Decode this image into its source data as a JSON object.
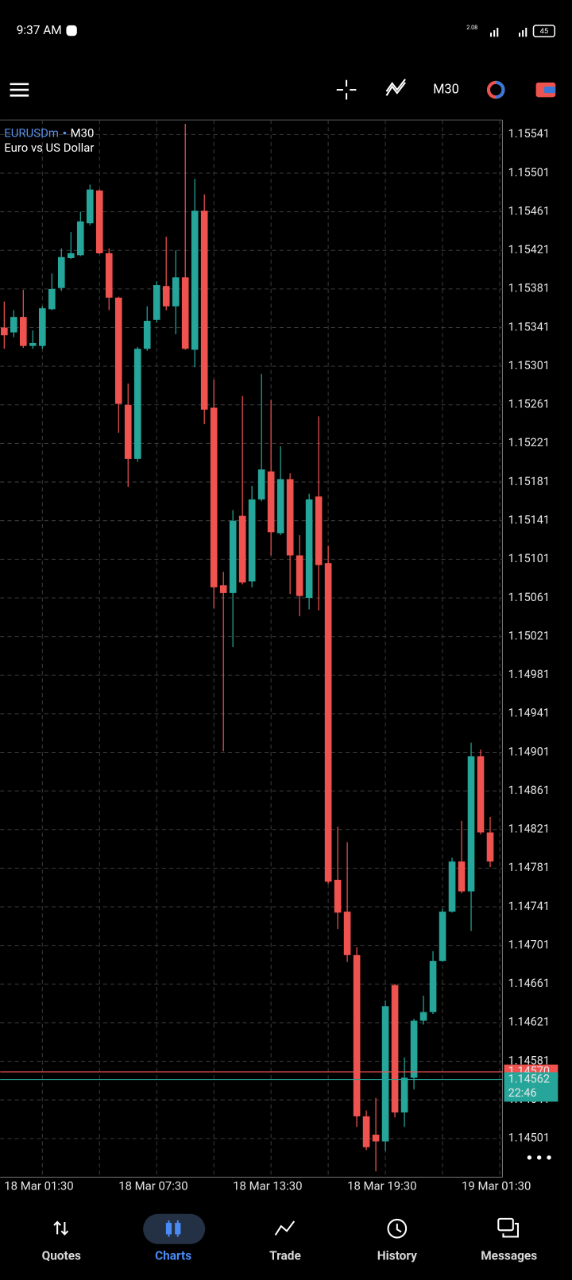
{
  "status_bar": {
    "time": "9:37 AM",
    "network_speed": "2.08",
    "battery": "45"
  },
  "toolbar": {
    "timeframe": "M30"
  },
  "chart_data": {
    "type": "candlestick",
    "symbol": "EURUSDm",
    "timeframe": "M30",
    "description": "Euro vs US Dollar",
    "up_color": "#26a69a",
    "down_color": "#ef5350",
    "categories": [
      "18 Mar 01:30",
      null,
      null,
      null,
      null,
      null,
      null,
      null,
      null,
      null,
      null,
      null,
      "18 Mar 07:30",
      null,
      null,
      null,
      null,
      null,
      null,
      null,
      null,
      null,
      null,
      null,
      "18 Mar 13:30",
      null,
      null,
      null,
      null,
      null,
      null,
      null,
      null,
      null,
      null,
      null,
      "18 Mar 19:30",
      null,
      null,
      null,
      null,
      null,
      null,
      null,
      null,
      null,
      null,
      null,
      "19 Mar 01:30",
      null,
      null,
      null
    ],
    "open": [
      1.15341,
      1.15336,
      1.15352,
      1.15322,
      1.15322,
      1.1536,
      1.15382,
      1.15413,
      1.15416,
      1.15449,
      1.15483,
      1.15418,
      1.15372,
      1.15261,
      1.15205,
      1.15319,
      1.15349,
      1.15384,
      1.15363,
      1.15393,
      1.15318,
      1.15462,
      1.15258,
      1.15074,
      1.15066,
      1.15146,
      1.15078,
      1.15163,
      1.15192,
      1.15128,
      1.15184,
      1.15105,
      1.15061,
      1.15166,
      1.15097,
      1.14769,
      1.14736,
      1.14691,
      1.14524,
      1.14505,
      1.14498,
      1.1466,
      1.14528,
      1.14564,
      1.14623,
      1.14632,
      1.14685,
      1.14736,
      1.14788,
      1.14757,
      1.14897,
      1.14818
    ],
    "high": [
      1.15368,
      1.15359,
      1.1538,
      1.15338,
      1.15363,
      1.15397,
      1.15423,
      1.1544,
      1.15461,
      1.15489,
      1.15484,
      1.15423,
      1.15373,
      1.15283,
      1.15321,
      1.15363,
      1.15389,
      1.15435,
      1.15421,
      1.15552,
      1.15495,
      1.15479,
      1.15287,
      1.15088,
      1.15152,
      1.1527,
      1.15177,
      1.15293,
      1.15266,
      1.15218,
      1.1519,
      1.15126,
      1.15169,
      1.15249,
      1.15115,
      1.14824,
      1.14808,
      1.14699,
      1.1453,
      1.14543,
      1.14644,
      1.14661,
      1.14585,
      1.14625,
      1.14649,
      1.14695,
      1.14739,
      1.14792,
      1.1483,
      1.14911,
      1.14904,
      1.14834
    ],
    "low": [
      1.15319,
      1.15331,
      1.1532,
      1.15319,
      1.15319,
      1.15359,
      1.15379,
      1.15412,
      1.15415,
      1.15447,
      1.15417,
      1.15359,
      1.15232,
      1.15176,
      1.15202,
      1.15317,
      1.15346,
      1.15359,
      1.15334,
      1.15318,
      1.153,
      1.15241,
      1.1505,
      1.14902,
      1.1501,
      1.15075,
      1.15072,
      1.15161,
      1.15105,
      1.15126,
      1.15065,
      1.15042,
      1.15049,
      1.15048,
      1.14765,
      1.14718,
      1.14684,
      1.14513,
      1.14489,
      1.14467,
      1.14488,
      1.14523,
      1.14513,
      1.14552,
      1.14619,
      1.1463,
      1.14684,
      1.14735,
      1.14755,
      1.14716,
      1.14816,
      1.14782
    ],
    "close": [
      1.15333,
      1.15352,
      1.15322,
      1.15325,
      1.15361,
      1.15381,
      1.15414,
      1.15418,
      1.15451,
      1.15484,
      1.15418,
      1.15372,
      1.15262,
      1.15205,
      1.15319,
      1.15348,
      1.15385,
      1.15363,
      1.15393,
      1.15319,
      1.15462,
      1.15256,
      1.15072,
      1.15066,
      1.15141,
      1.15077,
      1.15163,
      1.15194,
      1.15129,
      1.15184,
      1.15105,
      1.15063,
      1.15163,
      1.15095,
      1.14767,
      1.14735,
      1.14691,
      1.14524,
      1.14492,
      1.14498,
      1.14638,
      1.14528,
      1.14564,
      1.14623,
      1.14632,
      1.14685,
      1.14736,
      1.14788,
      1.14757,
      1.14897,
      1.14818,
      1.14788
    ],
    "ylim": [
      1.14461,
      1.15556
    ],
    "yticks": [
      1.14501,
      1.14541,
      1.14581,
      1.14621,
      1.14661,
      1.14701,
      1.14741,
      1.14781,
      1.14821,
      1.14861,
      1.14901,
      1.14941,
      1.14981,
      1.15021,
      1.15061,
      1.15101,
      1.15141,
      1.15181,
      1.15221,
      1.15261,
      1.15301,
      1.15341,
      1.15381,
      1.15421,
      1.15461,
      1.15501,
      1.15541
    ],
    "grid": true,
    "price_lines": [
      {
        "value": 1.1457,
        "label": "1.14570",
        "color": "#ef5350"
      },
      {
        "value": 1.14562,
        "label": "1.14562",
        "color": "#26a69a"
      }
    ],
    "countdown": "22:46"
  },
  "nav": [
    "Quotes",
    "Charts",
    "Trade",
    "History",
    "Messages"
  ]
}
